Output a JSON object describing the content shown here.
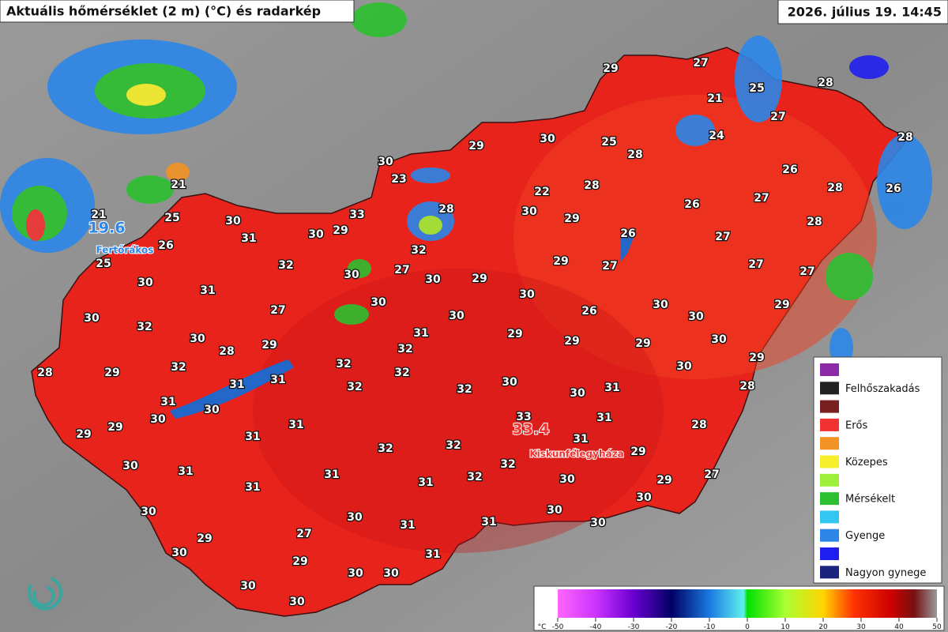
{
  "header": {
    "title": "Aktuális hőmérséklet (2 m) (°C) és radarkép",
    "timestamp": "2026. július 19. 14:45"
  },
  "extremes": [
    {
      "value": 19.6,
      "place": "Fertőrákos",
      "kind": "min"
    },
    {
      "value": 33.4,
      "place": "Kiskunfélegyháza",
      "kind": "max"
    }
  ],
  "station_temperatures": [
    29,
    27,
    28,
    25,
    21,
    27,
    24,
    28,
    29,
    30,
    25,
    28,
    30,
    23,
    26,
    22,
    28,
    28,
    26,
    21,
    25,
    21,
    26,
    25,
    30,
    33,
    30,
    29,
    31,
    28,
    30,
    29,
    26,
    27,
    28,
    27,
    26,
    27,
    32,
    32,
    27,
    30,
    30,
    29,
    29,
    27,
    27,
    30,
    31,
    30,
    30,
    27,
    29,
    30,
    26,
    30,
    30,
    32,
    30,
    31,
    30,
    28,
    29,
    32,
    29,
    29,
    29,
    30,
    29,
    28,
    29,
    32,
    32,
    32,
    30,
    30,
    31,
    31,
    32,
    32,
    30,
    31,
    28,
    31,
    30,
    30,
    33,
    31,
    29,
    29,
    31,
    31,
    31,
    28,
    32,
    32,
    29,
    30,
    32,
    31,
    32,
    31,
    31,
    30,
    29,
    27,
    31,
    30,
    30,
    30,
    31,
    31,
    30,
    30,
    27,
    29,
    30,
    29,
    31,
    30,
    30,
    30,
    30
  ],
  "radar_legend": {
    "items": [
      {
        "color": "#8e2aa8"
      },
      {
        "label": "Felhőszakadás",
        "color": "#222222"
      },
      {
        "color": "#7a1f1f"
      },
      {
        "label": "Erős",
        "color": "#f03232"
      },
      {
        "color": "#f39325"
      },
      {
        "label": "Közepes",
        "color": "#f5ee2a"
      },
      {
        "color": "#9cf03a"
      },
      {
        "label": "Mérsékelt",
        "color": "#2cc030"
      },
      {
        "color": "#33c6f0"
      },
      {
        "label": "Gyenge",
        "color": "#2b86e8"
      },
      {
        "color": "#1e1ef0"
      },
      {
        "label": "Nagyon gynege",
        "color": "#1a237e"
      }
    ]
  },
  "temperature_scale": {
    "unit": "°C",
    "min": -50,
    "max": 50,
    "ticks": [
      -50,
      -40,
      -30,
      -20,
      -10,
      0,
      10,
      20,
      30,
      40,
      50
    ]
  }
}
